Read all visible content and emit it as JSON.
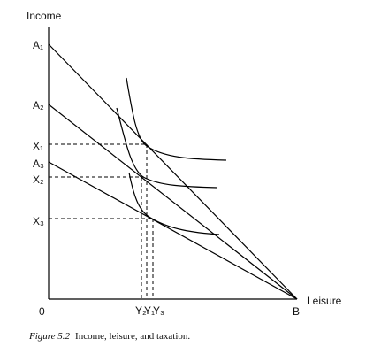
{
  "axes": {
    "y_label": "Income",
    "x_label": "Leisure",
    "origin": "0"
  },
  "points": {
    "a1": "A₁",
    "a2": "A₂",
    "a3": "A₃",
    "x1": "X₁",
    "x2": "X₂",
    "x3": "X₃",
    "y2": "Y₂",
    "y1": "Y₁",
    "y3": "Y₃",
    "b": "B"
  },
  "caption": {
    "label": "Figure 5.2",
    "text": "Income, leisure, and taxation."
  }
}
